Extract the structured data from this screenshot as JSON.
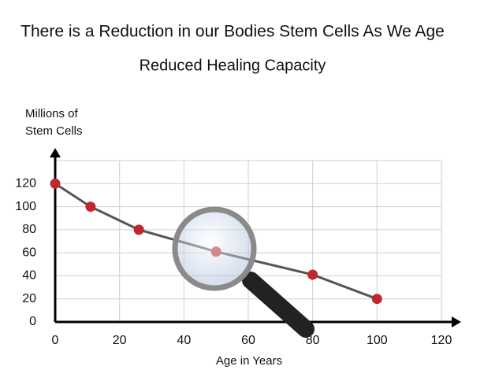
{
  "chart_data": {
    "type": "line",
    "title": "There is a Reduction in our Bodies Stem Cells As We Age",
    "subtitle": "Reduced Healing Capacity",
    "y_label": "Millions of Stem Cells",
    "x_label": "Age in Years",
    "x": [
      0,
      11,
      26,
      50,
      80,
      100
    ],
    "series": [
      {
        "values": [
          120,
          100,
          80,
          61,
          41,
          20
        ],
        "color": "#555555",
        "marker_color": "#c0272d"
      }
    ],
    "xlim": [
      0,
      120
    ],
    "xticks": [
      0,
      20,
      40,
      60,
      80,
      100,
      120
    ],
    "ylim": [
      0,
      140
    ],
    "yticks": [
      0,
      20,
      40,
      60,
      80,
      100,
      120
    ],
    "grid": true
  }
}
